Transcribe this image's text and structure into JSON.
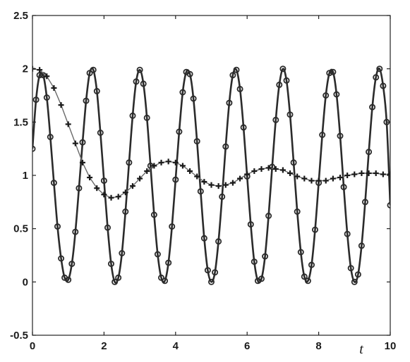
{
  "chart_data": {
    "type": "line",
    "title": "",
    "xlabel": "t",
    "ylabel": "",
    "xlim": [
      0,
      10
    ],
    "ylim": [
      -0.5,
      2.5
    ],
    "x_ticks": [
      "0",
      "2",
      "4",
      "6",
      "8",
      "10"
    ],
    "y_ticks": [
      "-0.5",
      "0",
      "0.5",
      "1",
      "1.5",
      "2",
      "2.5"
    ],
    "grid": false,
    "legend": "none",
    "colors": {
      "curve_a": "#2b2b2b",
      "curve_b": "#6a6a6a",
      "markers": "#1a1a1a"
    },
    "series": [
      {
        "style": "thick solid line with circle markers",
        "x": [
          0,
          0.1,
          0.2,
          0.3,
          0.4,
          0.5,
          0.6,
          0.7,
          0.8,
          0.9,
          1.0,
          1.1,
          1.2,
          1.3,
          1.4,
          1.5,
          1.6,
          1.7,
          1.8,
          1.9,
          2.0,
          2.1,
          2.2,
          2.3,
          2.4,
          2.5,
          2.6,
          2.7,
          2.8,
          2.9,
          3.0,
          3.1,
          3.2,
          3.3,
          3.4,
          3.5,
          3.6,
          3.7,
          3.8,
          3.9,
          4.0,
          4.1,
          4.2,
          4.3,
          4.4,
          4.5,
          4.6,
          4.7,
          4.8,
          4.9,
          5.0,
          5.1,
          5.2,
          5.3,
          5.4,
          5.5,
          5.6,
          5.7,
          5.8,
          5.9,
          6.0,
          6.1,
          6.2,
          6.3,
          6.4,
          6.5,
          6.6,
          6.7,
          6.8,
          6.9,
          7.0,
          7.1,
          7.2,
          7.3,
          7.4,
          7.5,
          7.6,
          7.7,
          7.8,
          7.9,
          8.0,
          8.1,
          8.2,
          8.3,
          8.4,
          8.5,
          8.6,
          8.7,
          8.8,
          8.9,
          9.0,
          9.1,
          9.2,
          9.3,
          9.4,
          9.5,
          9.6,
          9.7,
          9.8,
          9.9,
          10.0
        ],
        "y": [
          1.25,
          1.71,
          1.94,
          1.94,
          1.73,
          1.36,
          0.93,
          0.52,
          0.22,
          0.04,
          0.02,
          0.17,
          0.47,
          0.88,
          1.31,
          1.7,
          1.96,
          1.99,
          1.79,
          1.4,
          0.95,
          0.51,
          0.17,
          0.0,
          0.04,
          0.27,
          0.66,
          1.12,
          1.56,
          1.88,
          1.99,
          1.86,
          1.54,
          1.09,
          0.63,
          0.26,
          0.04,
          0.01,
          0.18,
          0.52,
          0.96,
          1.41,
          1.78,
          1.97,
          1.95,
          1.72,
          1.32,
          0.85,
          0.41,
          0.11,
          0.0,
          0.09,
          0.38,
          0.8,
          1.27,
          1.68,
          1.94,
          1.99,
          1.81,
          1.45,
          0.99,
          0.54,
          0.19,
          0.01,
          0.03,
          0.24,
          0.62,
          1.08,
          1.52,
          1.85,
          2.0,
          1.89,
          1.57,
          1.12,
          0.66,
          0.28,
          0.05,
          0.01,
          0.16,
          0.49,
          0.93,
          1.38,
          1.75,
          1.96,
          1.97,
          1.76,
          1.37,
          0.89,
          0.45,
          0.13,
          0.0,
          0.07,
          0.34,
          0.75,
          1.22,
          1.64,
          1.92,
          2.0,
          1.84,
          1.5,
          0.72
        ]
      },
      {
        "style": "thin solid line with plus markers",
        "x": [
          0,
          0.2,
          0.4,
          0.6,
          0.8,
          1.0,
          1.2,
          1.4,
          1.6,
          1.8,
          2.0,
          2.2,
          2.4,
          2.6,
          2.8,
          3.0,
          3.2,
          3.4,
          3.6,
          3.8,
          4.0,
          4.2,
          4.4,
          4.6,
          4.8,
          5.0,
          5.2,
          5.4,
          5.6,
          5.8,
          6.0,
          6.2,
          6.4,
          6.6,
          6.8,
          7.0,
          7.2,
          7.4,
          7.6,
          7.8,
          8.0,
          8.2,
          8.4,
          8.6,
          8.8,
          9.0,
          9.2,
          9.4,
          9.6,
          9.8,
          10.0
        ],
        "y": [
          2.0,
          1.99,
          1.93,
          1.82,
          1.66,
          1.48,
          1.3,
          1.12,
          0.98,
          0.88,
          0.82,
          0.79,
          0.8,
          0.84,
          0.9,
          0.97,
          1.04,
          1.09,
          1.12,
          1.13,
          1.12,
          1.09,
          1.04,
          0.99,
          0.94,
          0.91,
          0.9,
          0.91,
          0.93,
          0.97,
          1.01,
          1.04,
          1.06,
          1.07,
          1.06,
          1.05,
          1.02,
          0.99,
          0.97,
          0.95,
          0.95,
          0.95,
          0.97,
          0.98,
          1.0,
          1.01,
          1.02,
          1.02,
          1.02,
          1.01,
          1.01
        ]
      }
    ]
  }
}
